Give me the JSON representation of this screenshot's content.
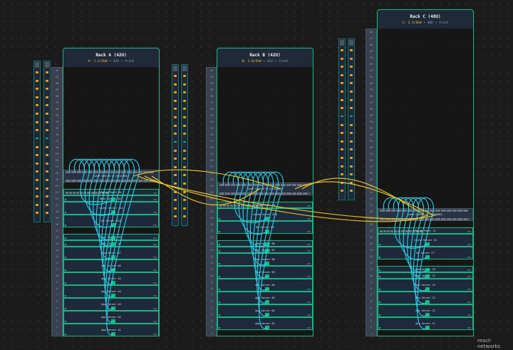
{
  "colors": {
    "accent": "#10b981",
    "power": "#facc15",
    "intra_cable": "#22d3ee",
    "inter_cable": "#facc15",
    "background": "#1b1b1b"
  },
  "racks": [
    {
      "id": "A",
      "title": "Rack A (42U)",
      "power": "A: 1.5/5kW",
      "meta": " • 42U • front",
      "units": 42,
      "devices": [
        {
          "name": "Leaf Switch A (32x100G)",
          "top": 26,
          "h": 2,
          "type": "switch"
        },
        {
          "name": "Patch Panel A1",
          "top": 23,
          "h": 1,
          "type": "patch"
        },
        {
          "name": "Mgmt Server A12",
          "top": 22,
          "h": 1,
          "type": "server"
        },
        {
          "name": "Cache Server A11",
          "top": 21,
          "h": 2,
          "type": "server"
        },
        {
          "name": "DB Server A10",
          "top": 19,
          "h": 2,
          "type": "server"
        },
        {
          "name": "App Server A9",
          "top": 16,
          "h": 1,
          "type": "server"
        },
        {
          "name": "Web Server A8",
          "top": 15,
          "h": 1,
          "type": "server"
        },
        {
          "name": "App Server A7",
          "top": 14,
          "h": 2,
          "type": "server"
        },
        {
          "name": "App Server A6",
          "top": 12,
          "h": 2,
          "type": "server"
        },
        {
          "name": "App Server A5",
          "top": 10,
          "h": 2,
          "type": "server"
        },
        {
          "name": "App Server A4",
          "top": 8,
          "h": 2,
          "type": "server"
        },
        {
          "name": "App Server A3",
          "top": 6,
          "h": 2,
          "type": "server"
        },
        {
          "name": "App Server A2",
          "top": 4,
          "h": 2,
          "type": "server"
        },
        {
          "name": "App Server A1",
          "top": 2,
          "h": 2,
          "type": "server"
        }
      ]
    },
    {
      "id": "B",
      "title": "Rack B (42U)",
      "power": "B: 1.8/5kW",
      "meta": " • 42U • front",
      "units": 42,
      "devices": [
        {
          "name": "Leaf Switch B (32x100G)",
          "top": 24,
          "h": 2,
          "type": "switch"
        },
        {
          "name": "Patch Panel B1",
          "top": 21,
          "h": 1,
          "type": "patch"
        },
        {
          "name": "Cache Server B10",
          "top": 20,
          "h": 2,
          "type": "server"
        },
        {
          "name": "DB Server B9",
          "top": 18,
          "h": 2,
          "type": "server"
        },
        {
          "name": "Web Server B8",
          "top": 15,
          "h": 1,
          "type": "server"
        },
        {
          "name": "Web Server B7",
          "top": 14,
          "h": 1,
          "type": "server"
        },
        {
          "name": "App Server B6",
          "top": 13,
          "h": 2,
          "type": "server"
        },
        {
          "name": "App Server B5",
          "top": 11,
          "h": 2,
          "type": "server"
        },
        {
          "name": "App Server B4",
          "top": 9,
          "h": 2,
          "type": "server"
        },
        {
          "name": "App Server B3",
          "top": 7,
          "h": 2,
          "type": "server"
        },
        {
          "name": "App Server B2",
          "top": 5,
          "h": 2,
          "type": "server"
        },
        {
          "name": "App Server B1",
          "top": 3,
          "h": 2,
          "type": "server"
        }
      ]
    },
    {
      "id": "C",
      "title": "Rack C (48U)",
      "power": "C: 2.1/6kW",
      "meta": " • 48U • front",
      "units": 48,
      "devices": [
        {
          "name": "Leaf Switch C (32x100G)",
          "top": 20,
          "h": 2,
          "type": "switch"
        },
        {
          "name": "Patch Panel C1",
          "top": 17,
          "h": 1,
          "type": "patch"
        },
        {
          "name": "Cache Server C8",
          "top": 16,
          "h": 2,
          "type": "server"
        },
        {
          "name": "DB Server C7",
          "top": 14,
          "h": 2,
          "type": "server"
        },
        {
          "name": "Web Server C6",
          "top": 11,
          "h": 1,
          "type": "server"
        },
        {
          "name": "Web Server C5",
          "top": 10,
          "h": 1,
          "type": "server"
        },
        {
          "name": "App Server C4",
          "top": 9,
          "h": 2,
          "type": "server"
        },
        {
          "name": "App Server C3",
          "top": 7,
          "h": 2,
          "type": "server"
        },
        {
          "name": "App Server C2",
          "top": 5,
          "h": 2,
          "type": "server"
        },
        {
          "name": "App Server C1",
          "top": 3,
          "h": 2,
          "type": "server"
        }
      ]
    }
  ],
  "watermark": "react-networks"
}
